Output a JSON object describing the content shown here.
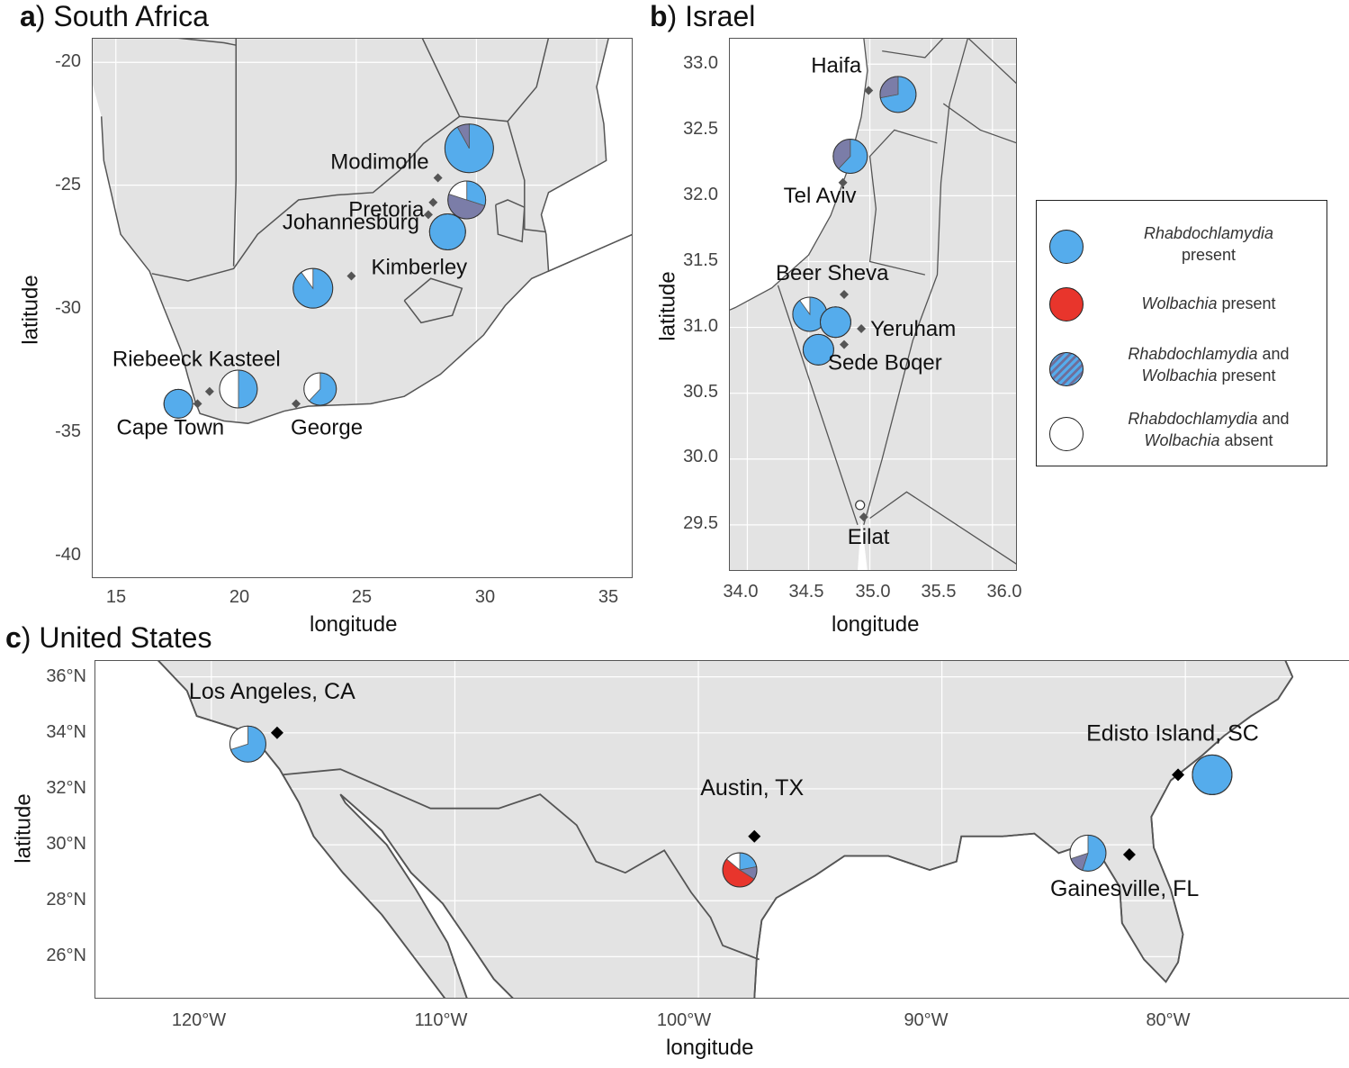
{
  "panels": {
    "a": {
      "letter": "a",
      "title": ") South Africa",
      "yticks": [
        "-20",
        "-25",
        "-30",
        "-35",
        "-40"
      ],
      "xticks": [
        "15",
        "20",
        "25",
        "30",
        "35"
      ],
      "xlabel": "longitude",
      "ylabel": "latitude",
      "xlim": [
        14,
        36.5
      ],
      "ylim": [
        -41,
        -19
      ]
    },
    "b": {
      "letter": "b",
      "title": ") Israel",
      "yticks": [
        "33.0",
        "32.5",
        "32.0",
        "31.5",
        "31.0",
        "30.5",
        "30.0",
        "29.5"
      ],
      "xticks": [
        "34.0",
        "34.5",
        "35.0",
        "35.5",
        "36.0"
      ],
      "xlabel": "longitude",
      "ylabel": "latitude",
      "xlim": [
        33.85,
        36.2
      ],
      "ylim": [
        29.15,
        33.2
      ]
    },
    "c": {
      "letter": "c",
      "title": ") United States",
      "yticks": [
        "36°N",
        "34°N",
        "32°N",
        "30°N",
        "28°N",
        "26°N"
      ],
      "xticks": [
        "120°W",
        "110°W",
        "100°W",
        "90°W",
        "80°W"
      ],
      "xlabel": "longitude",
      "ylabel": "latitude",
      "xlim": [
        -124.8,
        -72.8
      ],
      "ylim": [
        24.5,
        36.6
      ]
    }
  },
  "legend": {
    "entries": [
      {
        "italic": "Rhabdochlamydia",
        "text1": "",
        "line2": "present",
        "color": "#55acec"
      },
      {
        "italic": "Wolbachia",
        "text1": " present",
        "line2": "",
        "color": "#e8352c"
      },
      {
        "italic": "Rhabdochlamydia",
        "text1": " and",
        "line2italic": "Wolbachia",
        "line2": " present",
        "color": "#7b7da8"
      },
      {
        "italic": "Rhabdochlamydia",
        "text1": " and",
        "line2italic": "Wolbachia",
        "line2": " absent",
        "color": "#ffffff"
      }
    ]
  },
  "colors": {
    "land": "#e3e3e3",
    "border": "#555555",
    "rhabdo": "#55acec",
    "wolbachia": "#e8352c",
    "both": "#7b7da8",
    "absent": "#ffffff",
    "grid": "#ffffff"
  },
  "chart_data": [
    {
      "type": "map-pie",
      "panel": "a",
      "cities": [
        {
          "name": "Modimolle",
          "lon": 28.4,
          "lat": -24.7
        },
        {
          "name": "Pretoria",
          "lon": 28.2,
          "lat": -25.7
        },
        {
          "name": "Johannesburg",
          "lon": 28.0,
          "lat": -26.2
        },
        {
          "name": "Kimberley",
          "lon": 24.8,
          "lat": -28.7
        },
        {
          "name": "Riebeeck Kasteel",
          "lon": 18.9,
          "lat": -33.4
        },
        {
          "name": "Cape Town",
          "lon": 18.4,
          "lat": -33.9
        },
        {
          "name": "George",
          "lon": 22.5,
          "lat": -33.9
        }
      ],
      "pies": [
        {
          "lon": 29.7,
          "lat": -23.5,
          "r": 27,
          "rhabdo": 0.92,
          "both": 0.08,
          "absent": 0,
          "wolbachia": 0
        },
        {
          "lon": 29.6,
          "lat": -25.6,
          "r": 21,
          "rhabdo": 0.3,
          "both": 0.5,
          "absent": 0.2,
          "wolbachia": 0
        },
        {
          "lon": 28.8,
          "lat": -26.9,
          "r": 20,
          "rhabdo": 1,
          "both": 0,
          "absent": 0,
          "wolbachia": 0
        },
        {
          "lon": 23.2,
          "lat": -29.2,
          "r": 22,
          "rhabdo": 0.9,
          "both": 0,
          "absent": 0.1,
          "wolbachia": 0
        },
        {
          "lon": 20.1,
          "lat": -33.3,
          "r": 21,
          "rhabdo": 0.5,
          "both": 0,
          "absent": 0.5,
          "wolbachia": 0
        },
        {
          "lon": 23.5,
          "lat": -33.3,
          "r": 18,
          "rhabdo": 0.62,
          "both": 0,
          "absent": 0.38,
          "wolbachia": 0
        },
        {
          "lon": 17.6,
          "lat": -33.9,
          "r": 16,
          "rhabdo": 1,
          "both": 0,
          "absent": 0,
          "wolbachia": 0
        }
      ]
    },
    {
      "type": "map-pie",
      "panel": "b",
      "cities": [
        {
          "name": "Haifa",
          "lon": 34.99,
          "lat": 32.8
        },
        {
          "name": "Tel Aviv",
          "lon": 34.78,
          "lat": 32.1
        },
        {
          "name": "Beer Sheva",
          "lon": 34.79,
          "lat": 31.25
        },
        {
          "name": "Yeruham",
          "lon": 34.93,
          "lat": 30.99
        },
        {
          "name": "Sede Boqer",
          "lon": 34.79,
          "lat": 30.87
        },
        {
          "name": "Eilat",
          "lon": 34.95,
          "lat": 29.56
        }
      ],
      "pies": [
        {
          "lon": 35.23,
          "lat": 32.77,
          "r": 20,
          "rhabdo": 0.72,
          "both": 0.28,
          "absent": 0,
          "wolbachia": 0
        },
        {
          "lon": 34.84,
          "lat": 32.3,
          "r": 19,
          "rhabdo": 0.62,
          "both": 0.38,
          "absent": 0,
          "wolbachia": 0
        },
        {
          "lon": 34.51,
          "lat": 31.1,
          "r": 19,
          "rhabdo": 0.9,
          "both": 0,
          "absent": 0.1,
          "wolbachia": 0
        },
        {
          "lon": 34.72,
          "lat": 31.04,
          "r": 17,
          "rhabdo": 1,
          "both": 0,
          "absent": 0,
          "wolbachia": 0
        },
        {
          "lon": 34.58,
          "lat": 30.83,
          "r": 17,
          "rhabdo": 1,
          "both": 0,
          "absent": 0,
          "wolbachia": 0
        },
        {
          "lon": 34.92,
          "lat": 29.65,
          "r": 5,
          "rhabdo": 0,
          "both": 0,
          "absent": 1,
          "wolbachia": 0
        }
      ]
    },
    {
      "type": "map-pie",
      "panel": "c",
      "cities": [
        {
          "name": "Los Angeles, CA",
          "lon": -117.3,
          "lat": 34.0
        },
        {
          "name": "Austin, TX",
          "lon": -97.7,
          "lat": 30.3
        },
        {
          "name": "Edisto Island, SC",
          "lon": -80.3,
          "lat": 32.5
        },
        {
          "name": "Gainesville, FL",
          "lon": -82.3,
          "lat": 29.65
        }
      ],
      "pies": [
        {
          "lon": -118.5,
          "lat": 33.6,
          "r": 20,
          "rhabdo": 0.7,
          "both": 0,
          "absent": 0.3,
          "wolbachia": 0
        },
        {
          "lon": -98.3,
          "lat": 29.1,
          "r": 19,
          "rhabdo": 0.22,
          "both": 0.12,
          "absent": 0.14,
          "wolbachia": 0.52
        },
        {
          "lon": -78.9,
          "lat": 32.5,
          "r": 22,
          "rhabdo": 1,
          "both": 0,
          "absent": 0,
          "wolbachia": 0
        },
        {
          "lon": -84.0,
          "lat": 29.7,
          "r": 20,
          "rhabdo": 0.55,
          "both": 0.15,
          "absent": 0.3,
          "wolbachia": 0
        }
      ]
    }
  ]
}
